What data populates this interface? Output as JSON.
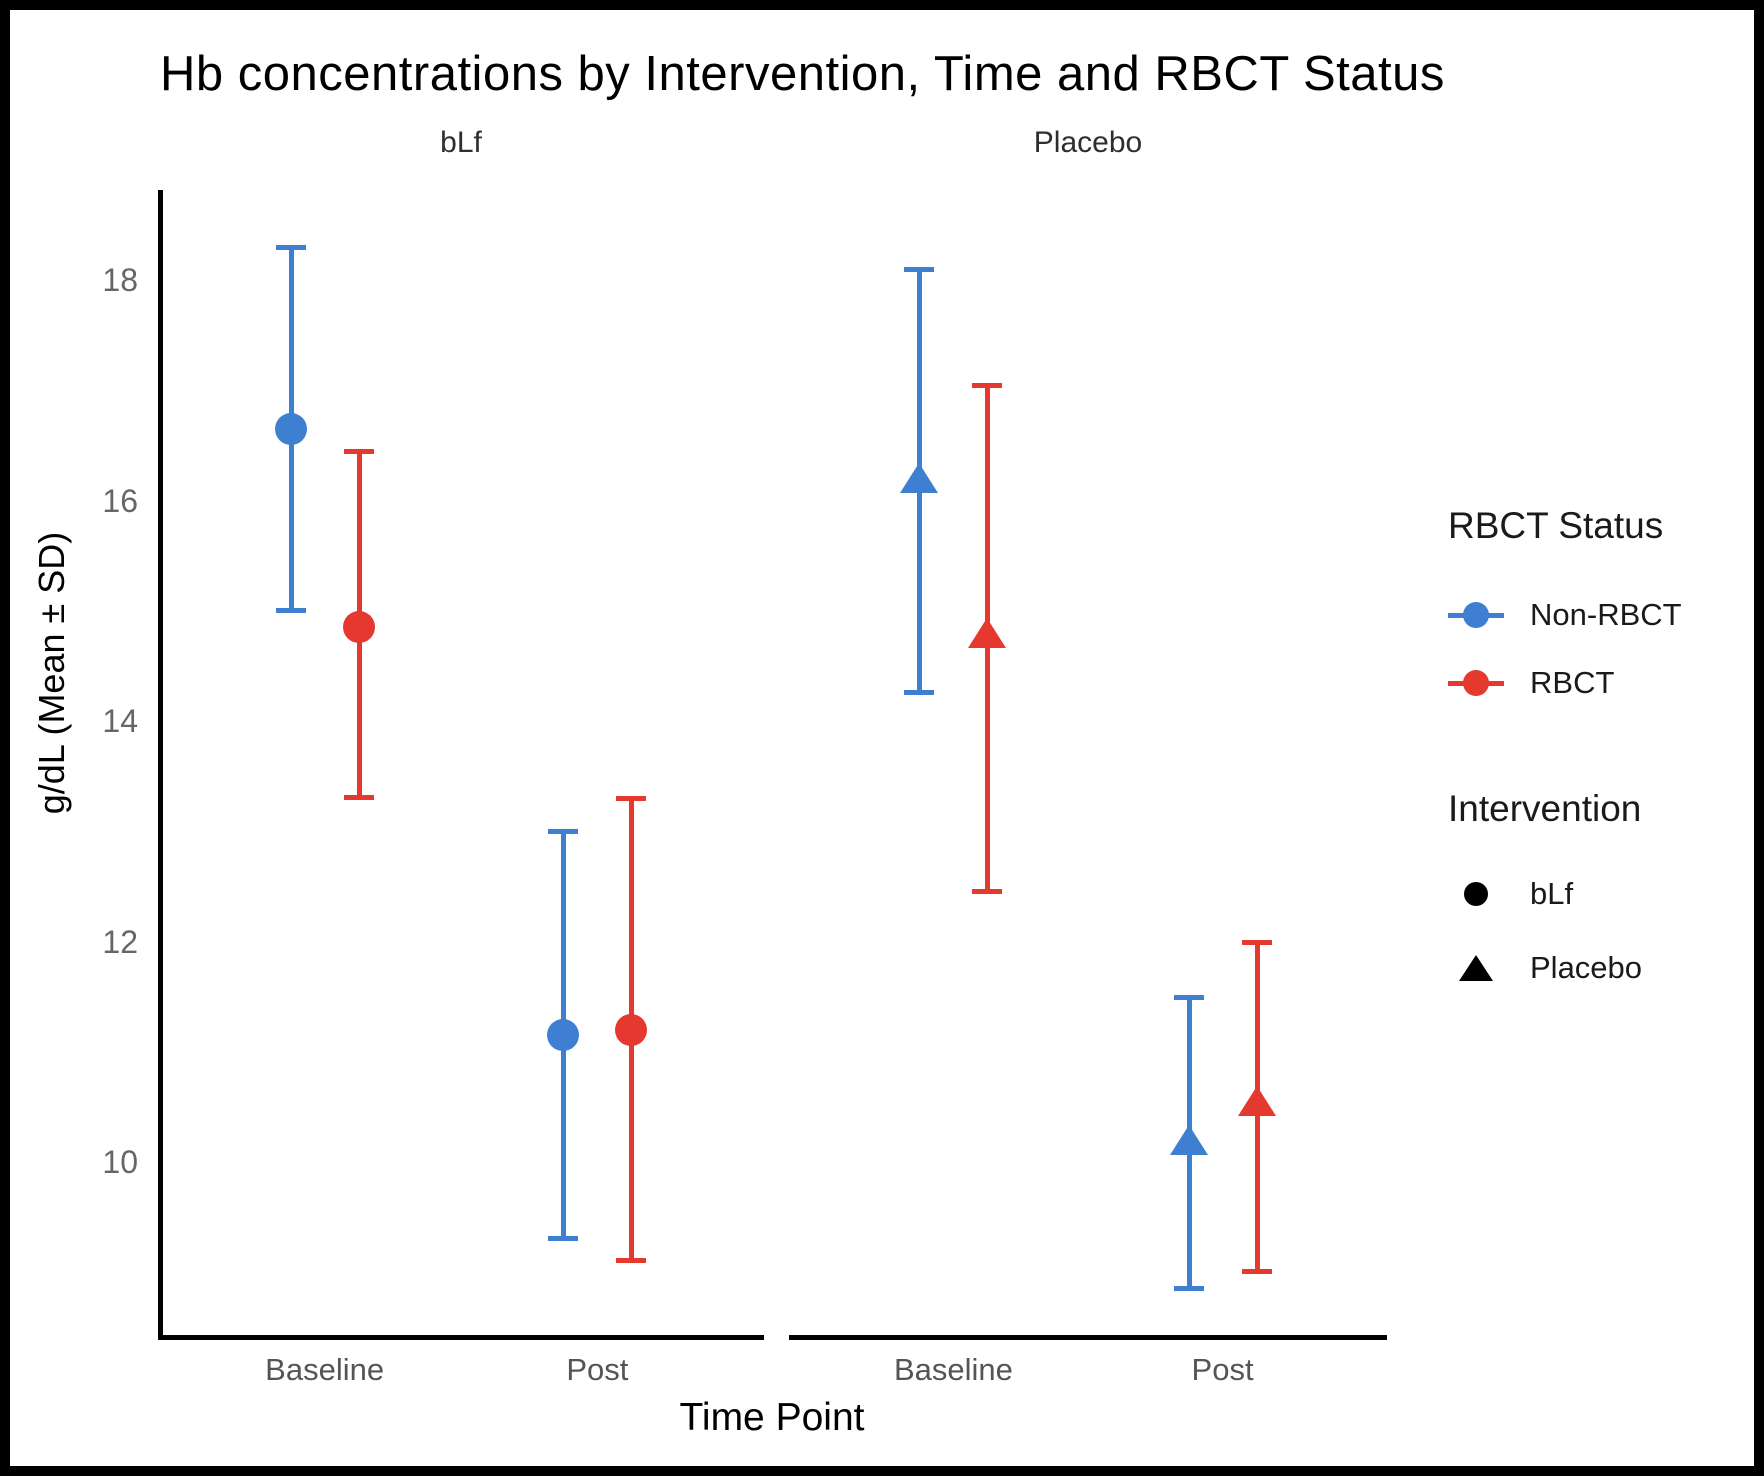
{
  "chart_data": {
    "type": "pointrange",
    "title": "Hb concentrations by Intervention, Time and RBCT Status",
    "xlabel": "Time Point",
    "ylabel": "g/dL (Mean ± SD)",
    "error_bar_meaning": "mean ± SD",
    "y_ticks": [
      18,
      16,
      14,
      12,
      10
    ],
    "ylim": [
      8.4,
      18.8
    ],
    "x_categories": [
      "Baseline",
      "Post"
    ],
    "grid": "off",
    "legend_position": "right",
    "colors": {
      "non_rbct": "#3E7FD2",
      "rbct": "#E5392F",
      "black": "#000000"
    },
    "facets": [
      {
        "label": "bLf",
        "marker": "circle",
        "series": [
          {
            "name": "Non-RBCT",
            "color": "#3E7FD2",
            "points": [
              {
                "x": "Baseline",
                "mean": 16.65,
                "lower": 15.0,
                "upper": 18.3
              },
              {
                "x": "Post",
                "mean": 11.15,
                "lower": 9.3,
                "upper": 13.0
              }
            ]
          },
          {
            "name": "RBCT",
            "color": "#E5392F",
            "points": [
              {
                "x": "Baseline",
                "mean": 14.85,
                "lower": 13.3,
                "upper": 16.45
              },
              {
                "x": "Post",
                "mean": 11.2,
                "lower": 9.1,
                "upper": 13.3
              }
            ]
          }
        ]
      },
      {
        "label": "Placebo",
        "marker": "triangle",
        "series": [
          {
            "name": "Non-RBCT",
            "color": "#3E7FD2",
            "points": [
              {
                "x": "Baseline",
                "mean": 16.2,
                "lower": 14.25,
                "upper": 18.1
              },
              {
                "x": "Post",
                "mean": 10.2,
                "lower": 8.85,
                "upper": 11.5
              }
            ]
          },
          {
            "name": "RBCT",
            "color": "#E5392F",
            "points": [
              {
                "x": "Baseline",
                "mean": 14.8,
                "lower": 12.45,
                "upper": 17.05
              },
              {
                "x": "Post",
                "mean": 10.55,
                "lower": 9.0,
                "upper": 12.0
              }
            ]
          }
        ]
      }
    ],
    "legend": {
      "rbct": {
        "title": "RBCT Status",
        "items": [
          {
            "label": "Non-RBCT",
            "color": "#3E7FD2",
            "marker": "circle-with-line"
          },
          {
            "label": "RBCT",
            "color": "#E5392F",
            "marker": "circle-with-line"
          }
        ]
      },
      "intervention": {
        "title": "Intervention",
        "items": [
          {
            "label": "bLf",
            "marker": "circle"
          },
          {
            "label": "Placebo",
            "marker": "triangle"
          }
        ]
      }
    }
  }
}
